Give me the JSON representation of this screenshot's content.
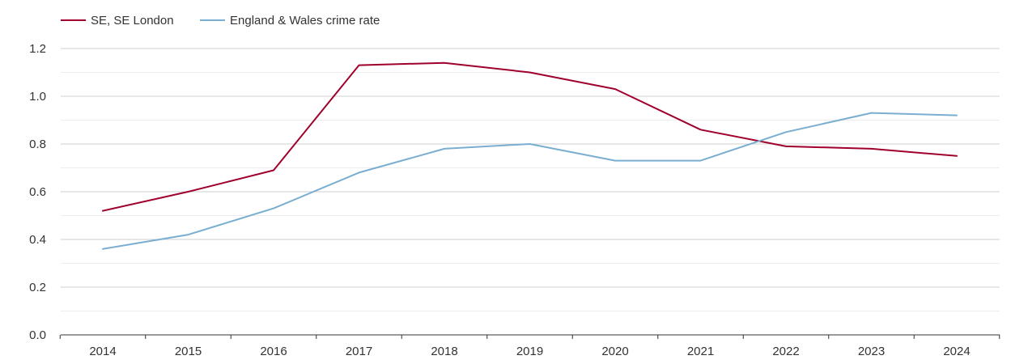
{
  "chart_data": {
    "type": "line",
    "title": "",
    "xlabel": "",
    "ylabel": "",
    "categories": [
      "2014",
      "2015",
      "2016",
      "2017",
      "2018",
      "2019",
      "2020",
      "2021",
      "2022",
      "2023",
      "2024"
    ],
    "ylim": [
      0,
      1.2
    ],
    "yticks": [
      "0.0",
      "0.2",
      "0.4",
      "0.6",
      "0.8",
      "1.0",
      "1.2"
    ],
    "grid": true,
    "legend_position": "top-left",
    "series": [
      {
        "name": "SE, SE London",
        "color": "#a0002c",
        "values": [
          0.52,
          0.6,
          0.69,
          1.13,
          1.14,
          1.1,
          1.03,
          0.86,
          0.79,
          0.78,
          0.75
        ]
      },
      {
        "name": "England & Wales crime rate",
        "color": "#7aaed0",
        "values": [
          0.36,
          0.42,
          0.53,
          0.68,
          0.78,
          0.8,
          0.73,
          0.73,
          0.85,
          0.93,
          0.92
        ]
      }
    ]
  }
}
